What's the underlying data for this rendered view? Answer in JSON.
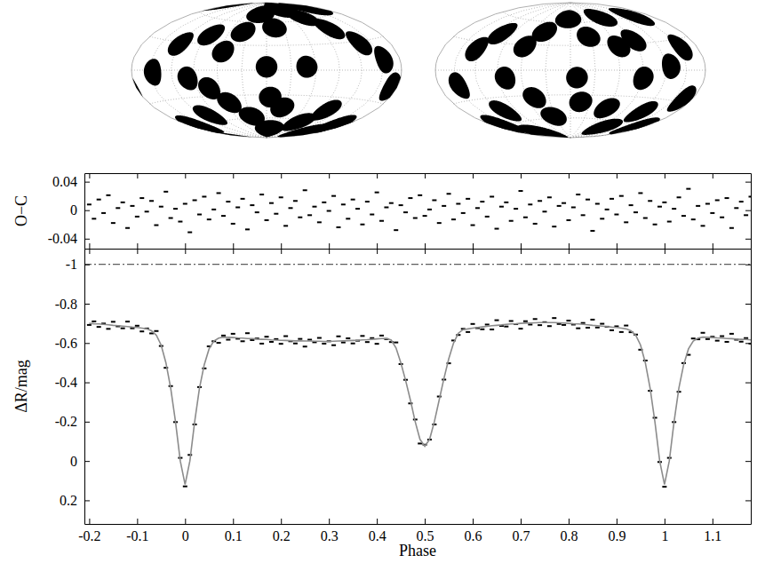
{
  "chart_data": [
    {
      "type": "map",
      "grid": true,
      "tick_labels": false,
      "xlim": [
        -180,
        180
      ],
      "ylim": [
        -90,
        90
      ],
      "xticks": [
        -150,
        -120,
        -90,
        -60,
        -30,
        0,
        30,
        60,
        90,
        120,
        150
      ],
      "yticks": [
        -60,
        -30,
        0,
        30,
        60
      ],
      "series": [
        {
          "color": "#000000",
          "radius": 13,
          "x": [
            -147,
            -121,
            -86,
            -99,
            -56,
            -38,
            -18,
            14,
            0,
            65,
            88,
            49,
            108,
            132,
            155,
            160,
            170,
            -164,
            -107,
            -55,
            -29,
            10,
            25,
            78,
            101,
            160,
            150,
            -74,
            5
          ],
          "values": [
            -2,
            28,
            41,
            -9,
            22,
            47,
            72,
            53,
            4,
            78,
            65,
            4,
            47,
            28,
            10,
            72,
            -15,
            -58,
            -52,
            -39,
            -58,
            -76,
            -46,
            -64,
            -46,
            -58,
            -72,
            -21,
            -33
          ]
        }
      ]
    },
    {
      "type": "map",
      "grid": true,
      "tick_labels": false,
      "xlim": [
        -180,
        180
      ],
      "ylim": [
        -90,
        90
      ],
      "xticks": [
        -150,
        -120,
        -90,
        -60,
        -30,
        0,
        30,
        60,
        90,
        120,
        150
      ],
      "yticks": [
        -60,
        -30,
        0,
        30,
        60
      ],
      "series": [
        {
          "color": "#000000",
          "radius": 13,
          "x": [
            -149,
            -127,
            -108,
            -81,
            -61,
            -42,
            -5,
            27,
            75,
            65,
            91,
            148,
            128,
            91,
            154,
            165,
            -160,
            -112,
            -130,
            -33,
            15,
            59,
            100,
            123,
            168,
            -50,
            8
          ],
          "values": [
            -15,
            22,
            41,
            -9,
            28,
            47,
            65,
            41,
            65,
            28,
            34,
            59,
            4,
            -9,
            22,
            -27,
            -58,
            -46,
            -76,
            -58,
            -39,
            -46,
            -70,
            -46,
            -60,
            -33,
            -9
          ]
        }
      ]
    },
    {
      "type": "scatter",
      "ylabel": "O−C",
      "tick_labels": "y",
      "xlim": [
        -0.21,
        1.18
      ],
      "ylim": [
        -0.054,
        0.052
      ],
      "xticks": [
        -0.2,
        -0.1,
        0,
        0.1,
        0.2,
        0.3,
        0.4,
        0.5,
        0.6,
        0.7,
        0.8,
        0.9,
        1,
        1.1
      ],
      "yticks": [
        -0.04,
        0,
        0.04
      ],
      "x": [
        -0.2,
        -0.19,
        -0.18,
        -0.17,
        -0.16,
        -0.15,
        -0.14,
        -0.13,
        -0.12,
        -0.11,
        -0.1,
        -0.09,
        -0.08,
        -0.07,
        -0.06,
        -0.05,
        -0.04,
        -0.03,
        -0.02,
        -0.01,
        0,
        0.01,
        0.02,
        0.03,
        0.04,
        0.05,
        0.06,
        0.07,
        0.08,
        0.09,
        0.1,
        0.11,
        0.12,
        0.13,
        0.14,
        0.15,
        0.16,
        0.17,
        0.18,
        0.19,
        0.2,
        0.21,
        0.22,
        0.23,
        0.24,
        0.25,
        0.26,
        0.27,
        0.28,
        0.29,
        0.3,
        0.31,
        0.32,
        0.33,
        0.34,
        0.35,
        0.36,
        0.37,
        0.38,
        0.39,
        0.4,
        0.41,
        0.42,
        0.43,
        0.44,
        0.45,
        0.46,
        0.47,
        0.48,
        0.49,
        0.5,
        0.51,
        0.52,
        0.53,
        0.54,
        0.55,
        0.56,
        0.57,
        0.58,
        0.59,
        0.6,
        0.61,
        0.62,
        0.63,
        0.64,
        0.65,
        0.66,
        0.67,
        0.68,
        0.69,
        0.7,
        0.71,
        0.72,
        0.73,
        0.74,
        0.75,
        0.76,
        0.77,
        0.78,
        0.79,
        0.8,
        0.81,
        0.82,
        0.83,
        0.84,
        0.85,
        0.86,
        0.87,
        0.88,
        0.89,
        0.9,
        0.91,
        0.92,
        0.93,
        0.94,
        0.95,
        0.96,
        0.97,
        0.98,
        0.99,
        1,
        1.01,
        1.02,
        1.03,
        1.04,
        1.05,
        1.06,
        1.07,
        1.08,
        1.09,
        1.1,
        1.11,
        1.12,
        1.13,
        1.14,
        1.15,
        1.16,
        1.17,
        1.18
      ],
      "series": [
        {
          "color": "#000000",
          "marker": "dash",
          "values": [
            0.008,
            -0.012,
            0.015,
            -0.004,
            0.021,
            -0.018,
            0.003,
            0.011,
            -0.025,
            0.006,
            -0.009,
            0.017,
            -0.002,
            0.013,
            -0.021,
            0.005,
            0.026,
            -0.011,
            0.002,
            -0.016,
            0.009,
            -0.031,
            0.014,
            -0.006,
            0.019,
            -0.013,
            0.001,
            0.024,
            -0.008,
            0.012,
            -0.019,
            0.004,
            0.016,
            -0.027,
            0.007,
            -0.003,
            0.022,
            -0.014,
            0.01,
            -0.005,
            0.018,
            -0.022,
            0.003,
            0.013,
            -0.01,
            0.028,
            -0.007,
            0.005,
            -0.017,
            0.011,
            -0.001,
            0.02,
            -0.024,
            0.008,
            -0.012,
            0.015,
            0.002,
            -0.02,
            0.012,
            -0.006,
            0.025,
            -0.015,
            0.004,
            0.01,
            -0.028,
            0.007,
            -0.003,
            0.017,
            -0.011,
            0.021,
            -0.008,
            0.001,
            0.014,
            -0.018,
            0.006,
            0.023,
            -0.013,
            0.009,
            -0.004,
            0.016,
            -0.021,
            0.003,
            0.012,
            -0.009,
            0.019,
            -0.026,
            0.005,
            0.011,
            -0.015,
            0.002,
            0.027,
            -0.01,
            0.008,
            -0.019,
            0.013,
            -0.002,
            0.018,
            -0.023,
            0.006,
            0.01,
            -0.014,
            0.004,
            0.022,
            -0.007,
            0.015,
            -0.029,
            0.009,
            -0.012,
            0.001,
            0.016,
            -0.006,
            0.02,
            -0.017,
            0.007,
            -0.003,
            0.024,
            -0.011,
            0.013,
            -0.02,
            0.005,
            0.011,
            -0.016,
            0.002,
            0.018,
            -0.008,
            0.03,
            -0.013,
            0.006,
            -0.022,
            0.009,
            -0.004,
            0.014,
            -0.01,
            0.017,
            -0.025,
            0.003,
            0.012,
            -0.007,
            0.019
          ]
        }
      ]
    },
    {
      "type": "scatter",
      "xlabel": "Phase",
      "ylabel": "ΔR/mag",
      "xlim": [
        -0.21,
        1.18
      ],
      "ylim": [
        0.32,
        -1.08
      ],
      "xticks": [
        -0.2,
        -0.1,
        0,
        0.1,
        0.2,
        0.3,
        0.4,
        0.5,
        0.6,
        0.7,
        0.8,
        0.9,
        1,
        1.1
      ],
      "yticks": [
        -1,
        -0.8,
        -0.6,
        -0.4,
        -0.2,
        0,
        0.2
      ],
      "reference_line": {
        "value": -1,
        "line_style": "dashdot"
      },
      "x": [
        -0.2,
        -0.19,
        -0.18,
        -0.17,
        -0.16,
        -0.15,
        -0.14,
        -0.13,
        -0.12,
        -0.11,
        -0.1,
        -0.09,
        -0.08,
        -0.07,
        -0.06,
        -0.05,
        -0.04,
        -0.03,
        -0.02,
        -0.01,
        0,
        0.01,
        0.02,
        0.03,
        0.04,
        0.05,
        0.06,
        0.07,
        0.08,
        0.09,
        0.1,
        0.11,
        0.12,
        0.13,
        0.14,
        0.15,
        0.16,
        0.17,
        0.18,
        0.19,
        0.2,
        0.21,
        0.22,
        0.23,
        0.24,
        0.25,
        0.26,
        0.27,
        0.28,
        0.29,
        0.3,
        0.31,
        0.32,
        0.33,
        0.34,
        0.35,
        0.36,
        0.37,
        0.38,
        0.39,
        0.4,
        0.41,
        0.42,
        0.43,
        0.44,
        0.45,
        0.46,
        0.47,
        0.48,
        0.49,
        0.5,
        0.51,
        0.52,
        0.53,
        0.54,
        0.55,
        0.56,
        0.57,
        0.58,
        0.59,
        0.6,
        0.61,
        0.62,
        0.63,
        0.64,
        0.65,
        0.66,
        0.67,
        0.68,
        0.69,
        0.7,
        0.71,
        0.72,
        0.73,
        0.74,
        0.75,
        0.76,
        0.77,
        0.78,
        0.79,
        0.8,
        0.81,
        0.82,
        0.83,
        0.84,
        0.85,
        0.86,
        0.87,
        0.88,
        0.89,
        0.9,
        0.91,
        0.92,
        0.93,
        0.94,
        0.95,
        0.96,
        0.97,
        0.98,
        0.99,
        1,
        1.01,
        1.02,
        1.03,
        1.04,
        1.05,
        1.06,
        1.07,
        1.08,
        1.09,
        1.1,
        1.11,
        1.12,
        1.13,
        1.14,
        1.15,
        1.16,
        1.17,
        1.18
      ],
      "series": [
        {
          "type": "scatter",
          "color": "#000000",
          "marker": "dash",
          "values": [
            -0.692,
            -0.71,
            -0.682,
            -0.699,
            -0.672,
            -0.708,
            -0.685,
            -0.675,
            -0.709,
            -0.675,
            -0.688,
            -0.659,
            -0.674,
            -0.649,
            -0.661,
            -0.585,
            -0.474,
            -0.381,
            -0.198,
            -0.016,
            0.129,
            -0.031,
            -0.186,
            -0.376,
            -0.471,
            -0.583,
            -0.609,
            -0.601,
            -0.638,
            -0.617,
            -0.647,
            -0.622,
            -0.609,
            -0.65,
            -0.615,
            -0.623,
            -0.597,
            -0.632,
            -0.606,
            -0.62,
            -0.596,
            -0.635,
            -0.609,
            -0.598,
            -0.621,
            -0.582,
            -0.617,
            -0.604,
            -0.626,
            -0.597,
            -0.609,
            -0.589,
            -0.634,
            -0.603,
            -0.624,
            -0.598,
            -0.612,
            -0.636,
            -0.605,
            -0.625,
            -0.596,
            -0.638,
            -0.62,
            -0.605,
            -0.603,
            -0.493,
            -0.413,
            -0.293,
            -0.211,
            -0.089,
            -0.083,
            -0.109,
            -0.186,
            -0.328,
            -0.414,
            -0.497,
            -0.613,
            -0.641,
            -0.672,
            -0.656,
            -0.697,
            -0.676,
            -0.67,
            -0.694,
            -0.669,
            -0.716,
            -0.687,
            -0.684,
            -0.712,
            -0.696,
            -0.673,
            -0.711,
            -0.694,
            -0.722,
            -0.691,
            -0.706,
            -0.686,
            -0.727,
            -0.697,
            -0.692,
            -0.714,
            -0.694,
            -0.675,
            -0.702,
            -0.678,
            -0.719,
            -0.679,
            -0.698,
            -0.683,
            -0.665,
            -0.685,
            -0.656,
            -0.689,
            -0.655,
            -0.643,
            -0.566,
            -0.511,
            -0.357,
            -0.22,
            0.005,
            0.131,
            -0.016,
            -0.198,
            -0.352,
            -0.498,
            -0.54,
            -0.623,
            -0.619,
            -0.652,
            -0.62,
            -0.632,
            -0.612,
            -0.635,
            -0.606,
            -0.647,
            -0.617,
            -0.607,
            -0.625,
            -0.597
          ]
        },
        {
          "type": "line",
          "color": "#8c8c8c",
          "line_style": "solid",
          "values": [
            -0.7,
            -0.698,
            -0.697,
            -0.695,
            -0.693,
            -0.69,
            -0.688,
            -0.686,
            -0.684,
            -0.681,
            -0.679,
            -0.676,
            -0.672,
            -0.662,
            -0.64,
            -0.59,
            -0.5,
            -0.37,
            -0.2,
            0.0,
            0.12,
            0.0,
            -0.2,
            -0.37,
            -0.49,
            -0.57,
            -0.61,
            -0.625,
            -0.63,
            -0.629,
            -0.628,
            -0.626,
            -0.625,
            -0.623,
            -0.622,
            -0.62,
            -0.619,
            -0.618,
            -0.616,
            -0.615,
            -0.614,
            -0.613,
            -0.612,
            -0.611,
            -0.611,
            -0.61,
            -0.61,
            -0.609,
            -0.609,
            -0.608,
            -0.608,
            -0.609,
            -0.61,
            -0.611,
            -0.612,
            -0.613,
            -0.614,
            -0.616,
            -0.617,
            -0.619,
            -0.621,
            -0.623,
            -0.624,
            -0.615,
            -0.575,
            -0.5,
            -0.41,
            -0.31,
            -0.2,
            -0.11,
            -0.075,
            -0.11,
            -0.2,
            -0.31,
            -0.42,
            -0.52,
            -0.6,
            -0.65,
            -0.668,
            -0.672,
            -0.676,
            -0.679,
            -0.682,
            -0.685,
            -0.688,
            -0.69,
            -0.692,
            -0.695,
            -0.697,
            -0.698,
            -0.7,
            -0.701,
            -0.702,
            -0.703,
            -0.704,
            -0.704,
            -0.704,
            -0.704,
            -0.703,
            -0.702,
            -0.7,
            -0.698,
            -0.697,
            -0.695,
            -0.693,
            -0.69,
            -0.688,
            -0.686,
            -0.684,
            -0.681,
            -0.679,
            -0.676,
            -0.672,
            -0.662,
            -0.64,
            -0.59,
            -0.5,
            -0.37,
            -0.2,
            0.0,
            0.12,
            0.0,
            -0.2,
            -0.37,
            -0.49,
            -0.57,
            -0.61,
            -0.625,
            -0.63,
            -0.629,
            -0.628,
            -0.626,
            -0.625,
            -0.623,
            -0.622,
            -0.62,
            -0.619,
            -0.618,
            -0.616
          ]
        }
      ]
    }
  ]
}
